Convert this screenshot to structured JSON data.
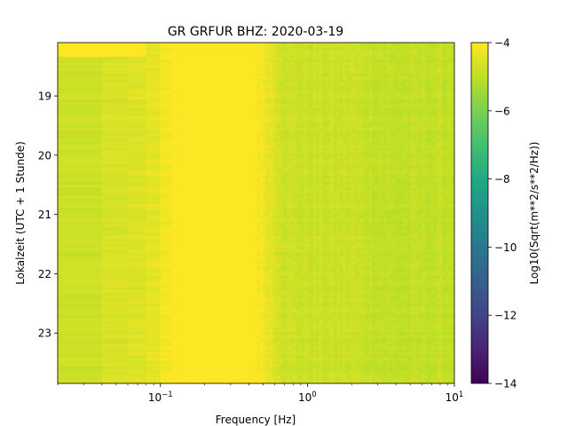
{
  "chart_data": {
    "type": "heatmap",
    "title": "GR GRFUR  BHZ: 2020-03-19",
    "xlabel": "Frequency [Hz]",
    "ylabel": "Lokalzeit (UTC + 1 Stunde)",
    "x_scale": "log",
    "xlim": [
      0.02,
      10
    ],
    "x_ticks": [
      {
        "value": 0.1,
        "base": "10",
        "exp": "−1"
      },
      {
        "value": 1,
        "base": "10",
        "exp": "0"
      },
      {
        "value": 10,
        "base": "10",
        "exp": "1"
      }
    ],
    "ylim_hours": [
      18.1,
      23.85
    ],
    "y_inverted": true,
    "y_ticks": [
      "19",
      "20",
      "21",
      "22",
      "23"
    ],
    "colorbar": {
      "label": "Log10(Sqrt(m**2/s**2/Hz))",
      "range": [
        -14,
        -4
      ],
      "ticks": [
        "−4",
        "−6",
        "−8",
        "−10",
        "−12",
        "−14"
      ],
      "colormap": [
        "#440154",
        "#482475",
        "#414487",
        "#355f8d",
        "#2a788e",
        "#21918c",
        "#22a884",
        "#44bf70",
        "#7ad151",
        "#bddf26",
        "#fde725"
      ]
    },
    "spectral_profile": {
      "freq_hz": [
        0.02,
        0.04,
        0.06,
        0.08,
        0.12,
        0.45,
        0.7,
        1.0,
        2.0,
        4.0,
        10.0
      ],
      "log10_amplitude": [
        -4.85,
        -4.75,
        -4.55,
        -4.4,
        -4.0,
        -4.0,
        -4.75,
        -4.8,
        -4.8,
        -4.95,
        -4.9
      ]
    }
  }
}
